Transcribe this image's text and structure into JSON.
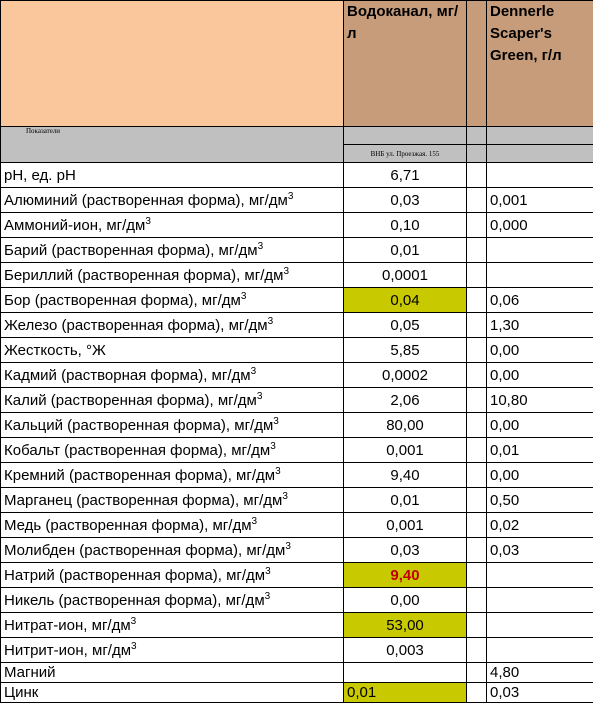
{
  "header": {
    "col_b": "Водоканал, мг/л",
    "col_d": "Dennerle Scaper's Green, г/л",
    "row_label": "Показатели",
    "source": "ВНБ ул. Проезжая. 155"
  },
  "table": {
    "rows": [
      {
        "name": "pH, ед. pH",
        "v1": "6,71",
        "v2": null
      },
      {
        "name": "Алюминий (растворенная форма), мг/дм",
        "sup": "3",
        "v1": "0,03",
        "v2": "0,001"
      },
      {
        "name": "Аммоний-ион, мг/дм",
        "sup": "3",
        "v1": "0,10",
        "v2": "0,000"
      },
      {
        "name": "Барий (растворенная форма), мг/дм",
        "sup": "3",
        "v1": "0,01",
        "v2": null
      },
      {
        "name": "Бериллий (растворенная форма), мг/дм",
        "sup": "3",
        "v1": "0,0001",
        "v2": null
      },
      {
        "name": "Бор (растворенная форма), мг/дм",
        "sup": "3",
        "v1": "0,04",
        "v2": "0,06",
        "highlight": "#c9c900"
      },
      {
        "name": "Железо (растворенная форма), мг/дм",
        "sup": "3",
        "v1": "0,05",
        "v2": "1,30"
      },
      {
        "name": "Жесткость, °Ж",
        "v1": "5,85",
        "v2": "0,00"
      },
      {
        "name": "Кадмий (растворная форма), мг/дм",
        "sup": "3",
        "v1": "0,0002",
        "v2": "0,00"
      },
      {
        "name": "Калий (растворенная форма), мг/дм",
        "sup": "3",
        "v1": "2,06",
        "v2": "10,80"
      },
      {
        "name": "Кальций (растворенная форма), мг/дм",
        "sup": "3",
        "v1": "80,00",
        "v2": "0,00"
      },
      {
        "name": "Кобальт (растворенная форма), мг/дм",
        "sup": "3",
        "v1": "0,001",
        "v2": "0,01"
      },
      {
        "name": "Кремний (растворенная форма), мг/дм",
        "sup": "3",
        "v1": "9,40",
        "v2": "0,00"
      },
      {
        "name": "Марганец (растворенная форма), мг/дм",
        "sup": "3",
        "v1": "0,01",
        "v2": "0,50"
      },
      {
        "name": "Медь (растворенная форма), мг/дм",
        "sup": "3",
        "v1": "0,001",
        "v2": "0,02"
      },
      {
        "name": "Молибден (растворенная форма), мг/дм",
        "sup": "3",
        "v1": "0,03",
        "v2": "0,03"
      },
      {
        "name": "Натрий (растворенная форма), мг/дм",
        "sup": "3",
        "v1": "9,40",
        "v2": null,
        "highlight": "#c9c900",
        "text_color": "#c00000",
        "bold": true
      },
      {
        "name": "Никель (растворенная форма), мг/дм",
        "sup": "3",
        "v1": "0,00",
        "v2": null
      },
      {
        "name": "Нитрат-ион, мг/дм",
        "sup": "3",
        "v1": "53,00",
        "v2": null,
        "highlight": "#c9c900"
      },
      {
        "name": "Нитрит-ион, мг/дм",
        "sup": "3",
        "v1": "0,003",
        "v2": null
      },
      {
        "name": "Магний",
        "v1": null,
        "v2": "4,80"
      },
      {
        "name": "Цинк",
        "v1": "0,01",
        "v2": "0,03",
        "highlight": "#c9c900",
        "align": "left"
      }
    ]
  }
}
